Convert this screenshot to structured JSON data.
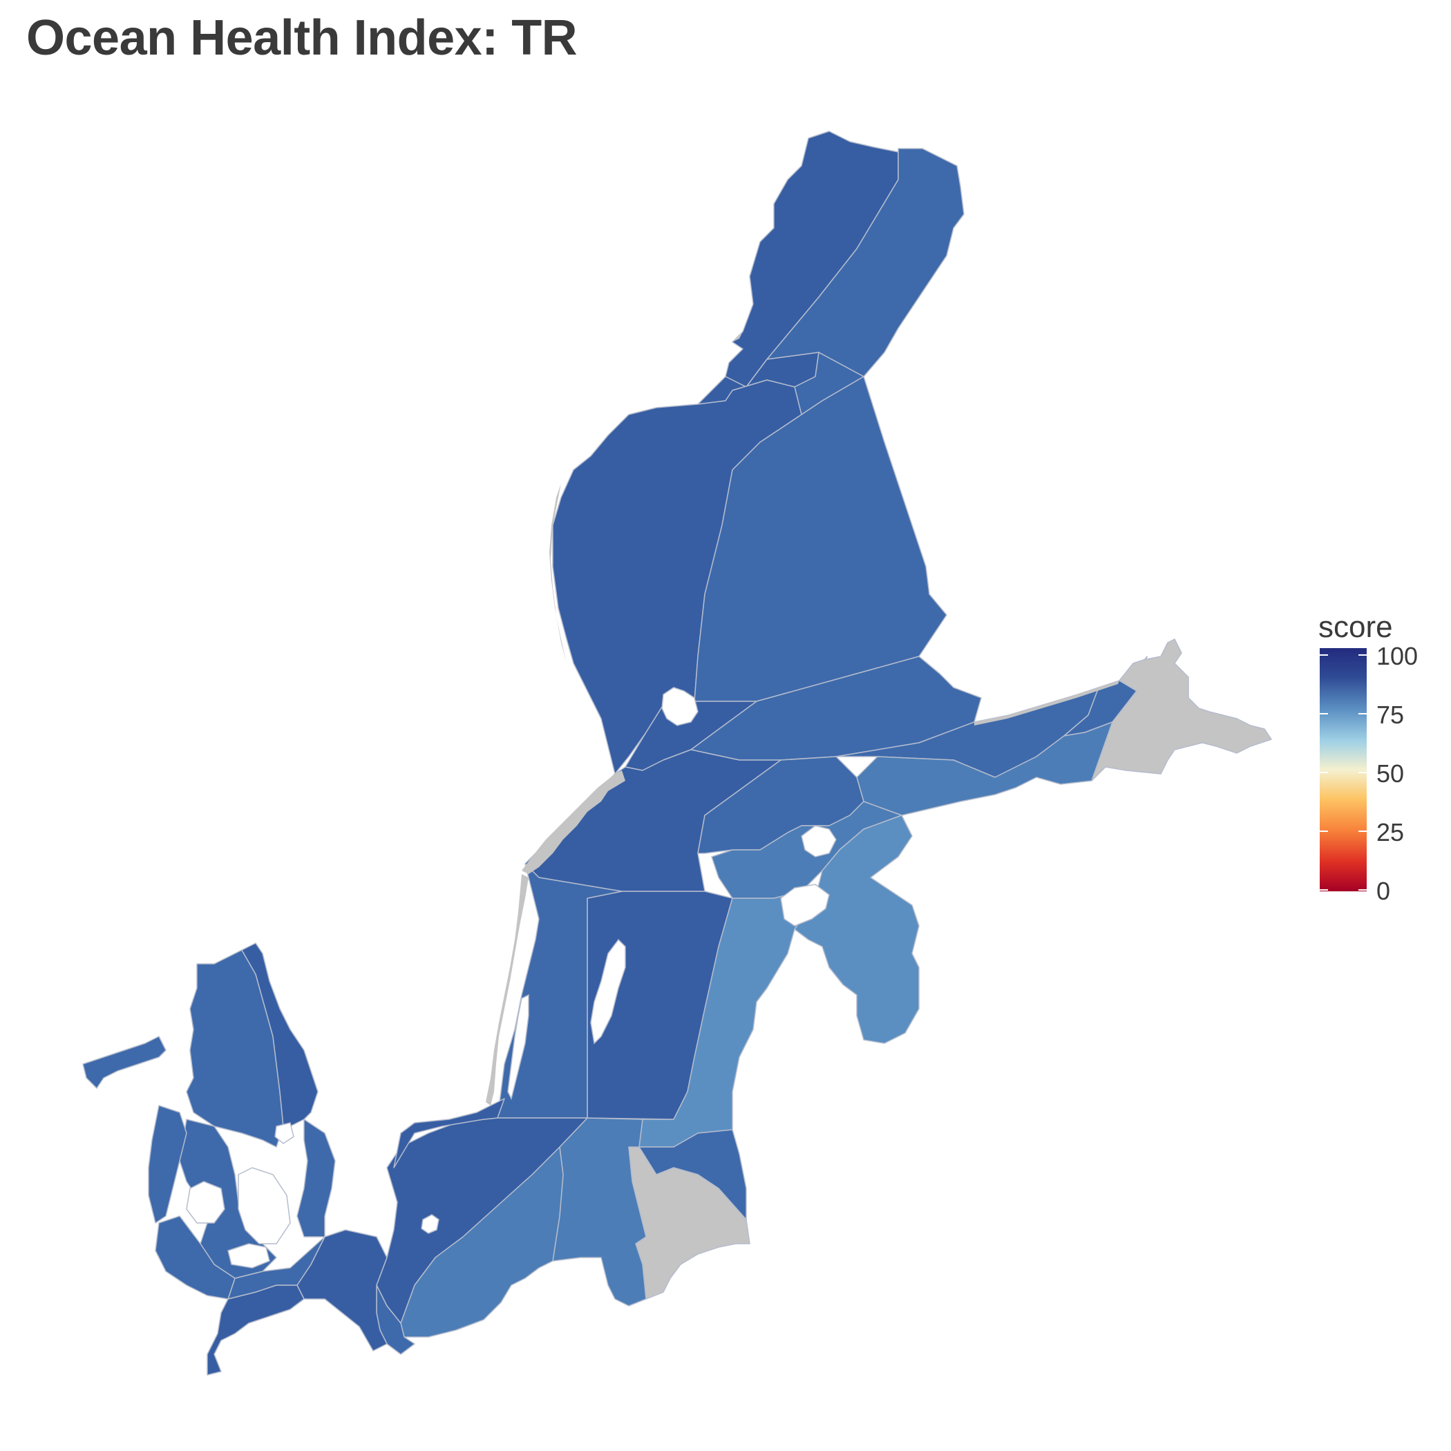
{
  "title": "Ocean Health Index: TR",
  "colors": {
    "score_100": "#232b7e",
    "score_90": "#375ea3",
    "score_85": "#3e6aab",
    "score_80": "#4c7db6",
    "score_75": "#5b8fc2",
    "no_data": "#c4c4c4",
    "land_edge": "#c4c4c4",
    "border": "#b5bccd"
  },
  "legend": {
    "title": "score",
    "ticks": [
      "100",
      "75",
      "50",
      "25",
      "0"
    ],
    "gradient": [
      "#232b7e",
      "#3b64a9",
      "#73b2d6",
      "#dbeef4",
      "#fdd88a",
      "#f98f3c",
      "#e33424",
      "#a50026"
    ]
  }
}
